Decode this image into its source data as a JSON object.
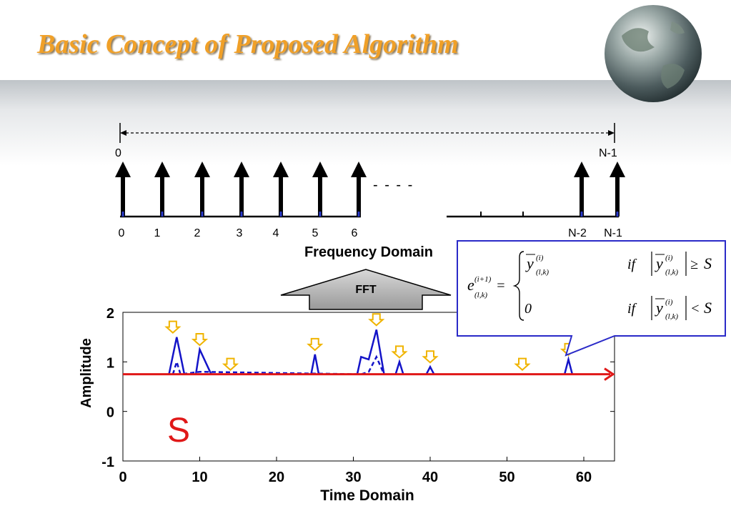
{
  "slide": {
    "title": "Basic Concept of Proposed Algorithm"
  },
  "frequency_domain": {
    "range_start": "0",
    "range_end": "N-1",
    "ellipsis": "- - - -",
    "bin_labels": [
      "0",
      "1",
      "2",
      "3",
      "4",
      "5",
      "6",
      "N-2",
      "N-1"
    ],
    "axis_label": "Frequency Domain"
  },
  "transform": {
    "label": "FFT"
  },
  "equation": {
    "case1_condition_op": "≥",
    "case2_value": "0",
    "case2_condition_op": "<",
    "threshold_symbol": "S",
    "if_word": "if"
  },
  "threshold_label": "S",
  "chart_data": {
    "type": "line",
    "xlabel": "Time Domain",
    "ylabel": "Amplitude",
    "xlim": [
      0,
      64
    ],
    "ylim": [
      -1,
      2
    ],
    "x_ticks": [
      "0",
      "10",
      "20",
      "30",
      "40",
      "50",
      "60"
    ],
    "y_ticks": [
      "-1",
      "0",
      "1",
      "2"
    ],
    "threshold": 0.75,
    "series": [
      {
        "style": "solid",
        "points": [
          [
            6,
            0.75
          ],
          [
            7,
            1.5
          ],
          [
            8,
            0.75
          ],
          [
            9.5,
            0.75
          ],
          [
            10,
            1.25
          ],
          [
            11.5,
            0.75
          ],
          [
            14,
            0.75
          ],
          [
            24.5,
            0.75
          ],
          [
            25,
            1.15
          ],
          [
            25.5,
            0.75
          ],
          [
            30.5,
            0.75
          ],
          [
            31,
            1.1
          ],
          [
            32,
            1.05
          ],
          [
            33,
            1.65
          ],
          [
            34,
            0.75
          ],
          [
            35.5,
            0.75
          ],
          [
            36,
            1.0
          ],
          [
            36.5,
            0.75
          ],
          [
            39.5,
            0.75
          ],
          [
            40,
            0.9
          ],
          [
            40.5,
            0.75
          ],
          [
            57.5,
            0.75
          ],
          [
            58,
            1.05
          ],
          [
            58.5,
            0.75
          ]
        ]
      },
      {
        "style": "dashed",
        "points": [
          [
            6.5,
            0.75
          ],
          [
            7,
            1.0
          ],
          [
            7.5,
            0.75
          ],
          [
            10,
            0.8
          ],
          [
            31,
            0.75
          ],
          [
            32,
            0.8
          ],
          [
            33,
            1.1
          ],
          [
            34,
            0.75
          ]
        ]
      }
    ],
    "peak_markers_x": [
      6.5,
      10,
      14,
      25,
      33,
      36,
      40,
      52,
      58
    ]
  }
}
